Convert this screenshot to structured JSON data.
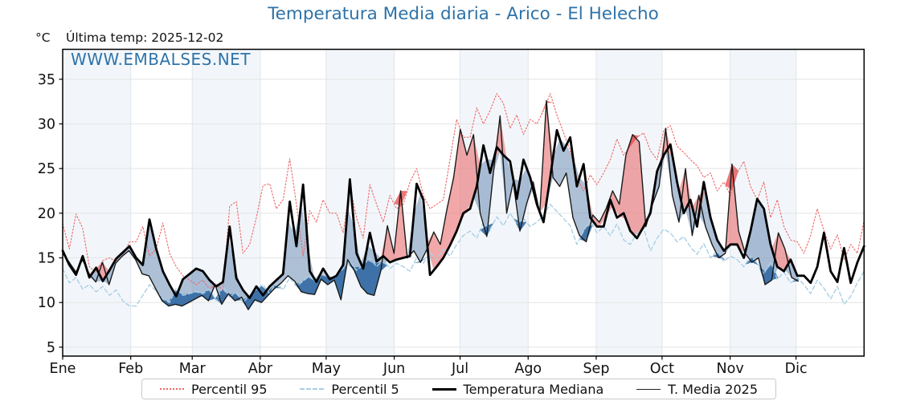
{
  "title": "Temperatura Media diaria - Arico - El Helecho",
  "header": {
    "unit_label": "°C",
    "last_temp_label": "Última temp: 2025-12-02"
  },
  "watermark": "WWW.EMBALSES.NET",
  "legend": {
    "items": [
      {
        "label": "Percentil 95",
        "kind": "dotted",
        "color": "#ef6565"
      },
      {
        "label": "Percentil 5",
        "kind": "dashed",
        "color": "#a9cfe5"
      },
      {
        "label": "Temperatura Mediana",
        "kind": "thick",
        "color": "#000000"
      },
      {
        "label": "T. Media 2025",
        "kind": "thin",
        "color": "#222222"
      }
    ]
  },
  "chart_data": {
    "type": "line",
    "title": "Temperatura Media diaria - Arico - El Helecho",
    "ylabel": "°C",
    "ylim": [
      4.0,
      38.35
    ],
    "y_ticks": [
      5,
      10,
      15,
      20,
      25,
      30,
      35
    ],
    "months": [
      "Ene",
      "Feb",
      "Mar",
      "Abr",
      "May",
      "Jun",
      "Jul",
      "Ago",
      "Sep",
      "Oct",
      "Nov",
      "Dic"
    ],
    "month_start_days": [
      0,
      31,
      59,
      90,
      120,
      151,
      181,
      212,
      243,
      273,
      304,
      334,
      365
    ],
    "grid": true,
    "legend_position": "bottom",
    "colors": {
      "title_blue": "#2e73a9",
      "p95_line": "#ef6565",
      "p5_line": "#a9cfe5",
      "median_line": "#000000",
      "t2025_line": "#1a1a1a",
      "fill_above_median": "rgba(233,110,110,0.60)",
      "fill_above_p95": "rgba(226,75,75,0.75)",
      "fill_below_median": "rgba(105,140,180,0.55)",
      "fill_below_p5": "rgba(42,100,160,0.85)",
      "band_shade": "#f2f6fa",
      "gridline": "#e4e4e4"
    },
    "series": [
      {
        "name": "Percentil 95",
        "days_span": 365,
        "values": [
          18.8,
          16.0,
          19.9,
          18.3,
          14.0,
          13.4,
          14.7,
          15.0,
          14.6,
          15.2,
          16.8,
          16.8,
          18.5,
          15.2,
          16.0,
          18.9,
          15.5,
          14.0,
          13.0,
          12.5,
          12.0,
          12.5,
          11.5,
          12.0,
          11.4,
          20.8,
          21.3,
          15.5,
          16.5,
          19.5,
          23.1,
          23.3,
          20.5,
          21.5,
          26.1,
          21.0,
          15.2,
          20.3,
          19.0,
          21.5,
          20.0,
          20.0,
          17.8,
          23.0,
          19.5,
          17.2,
          23.2,
          21.0,
          19.0,
          22.0,
          20.5,
          21.0,
          23.5,
          25.0,
          22.0,
          20.5,
          21.0,
          21.5,
          26.0,
          30.5,
          28.5,
          28.5,
          31.8,
          30.0,
          31.5,
          33.4,
          32.3,
          29.5,
          31.0,
          28.8,
          30.5,
          30.0,
          31.5,
          33.4,
          31.0,
          29.0,
          27.0,
          24.0,
          22.5,
          24.3,
          23.2,
          24.5,
          26.0,
          28.3,
          26.5,
          27.5,
          28.5,
          29.0,
          27.0,
          26.0,
          29.3,
          29.8,
          27.5,
          26.8,
          26.0,
          25.3,
          24.0,
          24.5,
          22.5,
          23.5,
          22.0,
          24.5,
          25.8,
          23.0,
          21.5,
          23.5,
          19.5,
          21.5,
          18.5,
          17.0,
          16.8,
          15.5,
          17.5,
          20.5,
          18.0,
          16.0,
          17.6,
          14.8,
          16.5,
          15.5,
          19.2
        ]
      },
      {
        "name": "Percentil 5",
        "days_span": 365,
        "values": [
          13.8,
          12.2,
          12.8,
          11.5,
          12.0,
          11.2,
          11.8,
          10.8,
          11.4,
          10.2,
          9.6,
          9.6,
          10.8,
          12.0,
          11.3,
          10.4,
          10.0,
          11.6,
          10.8,
          11.0,
          11.2,
          11.0,
          11.5,
          10.2,
          11.8,
          10.6,
          11.2,
          10.0,
          10.8,
          11.5,
          12.0,
          11.0,
          12.2,
          11.4,
          12.8,
          11.8,
          12.4,
          13.0,
          12.2,
          13.4,
          12.6,
          13.0,
          13.8,
          14.6,
          13.6,
          14.2,
          15.0,
          14.0,
          14.8,
          13.8,
          14.4,
          14.0,
          13.5,
          15.0,
          14.4,
          15.6,
          14.8,
          16.0,
          15.2,
          16.5,
          17.5,
          18.0,
          17.2,
          19.0,
          18.2,
          19.6,
          18.6,
          20.0,
          18.8,
          19.4,
          18.5,
          19.0,
          19.8,
          21.0,
          20.2,
          19.4,
          18.6,
          16.5,
          18.0,
          19.2,
          17.8,
          18.5,
          17.5,
          18.8,
          17.0,
          16.5,
          17.8,
          18.3,
          15.8,
          17.2,
          18.2,
          17.8,
          16.8,
          17.4,
          16.2,
          15.4,
          16.6,
          15.0,
          15.8,
          14.6,
          15.2,
          14.8,
          14.0,
          15.2,
          14.4,
          13.2,
          14.6,
          12.6,
          13.4,
          12.2,
          12.8,
          12.0,
          11.0,
          12.5,
          11.6,
          10.4,
          11.8,
          9.8,
          10.7,
          12.2,
          13.5
        ]
      },
      {
        "name": "Temperatura Mediana",
        "days_span": 365,
        "values": [
          15.8,
          14.2,
          13.1,
          15.2,
          12.8,
          13.9,
          12.4,
          13.6,
          14.9,
          15.6,
          16.3,
          15.0,
          14.2,
          19.3,
          16.0,
          13.5,
          12.0,
          10.7,
          12.6,
          13.2,
          13.8,
          13.5,
          12.5,
          11.8,
          12.3,
          18.5,
          12.7,
          11.4,
          10.5,
          11.8,
          10.8,
          11.8,
          12.5,
          13.2,
          21.3,
          16.3,
          23.2,
          13.5,
          12.3,
          13.8,
          12.6,
          13.0,
          14.2,
          23.8,
          15.5,
          13.8,
          17.8,
          14.6,
          15.2,
          14.5,
          14.8,
          15.0,
          15.2,
          23.3,
          21.5,
          13.1,
          14.0,
          15.0,
          16.4,
          18.0,
          20.0,
          20.5,
          23.0,
          27.6,
          24.5,
          27.4,
          26.5,
          25.8,
          21.6,
          26.0,
          24.0,
          21.0,
          19.0,
          24.0,
          29.3,
          27.0,
          28.5,
          23.0,
          25.5,
          19.5,
          18.5,
          18.5,
          21.5,
          19.5,
          20.0,
          18.0,
          17.2,
          18.5,
          20.0,
          24.7,
          26.5,
          27.7,
          23.5,
          20.0,
          21.5,
          18.5,
          23.5,
          19.5,
          17.0,
          15.8,
          16.5,
          16.5,
          15.0,
          18.0,
          21.6,
          20.5,
          16.5,
          14.0,
          13.5,
          14.8,
          13.0,
          13.0,
          12.2,
          14.0,
          17.8,
          13.5,
          12.3,
          16.1,
          12.2,
          14.5,
          16.3
        ]
      },
      {
        "name": "T. Media 2025",
        "days_span": 335,
        "values": [
          15.5,
          14.5,
          13.4,
          14.8,
          13.2,
          12.3,
          14.5,
          12.0,
          14.4,
          15.2,
          15.8,
          14.8,
          13.2,
          13.0,
          11.6,
          10.2,
          9.6,
          9.8,
          9.6,
          10.0,
          10.4,
          10.8,
          10.2,
          12.0,
          9.8,
          11.0,
          10.2,
          10.6,
          9.2,
          10.3,
          10.0,
          10.8,
          11.6,
          12.2,
          13.0,
          12.4,
          11.2,
          11.0,
          10.9,
          12.6,
          12.0,
          12.5,
          10.3,
          14.8,
          13.6,
          11.8,
          11.0,
          10.8,
          13.5,
          18.6,
          15.5,
          22.5,
          15.0,
          15.8,
          14.5,
          16.0,
          17.9,
          16.5,
          20.5,
          24.0,
          29.4,
          26.5,
          28.8,
          20.0,
          17.4,
          24.5,
          30.9,
          20.0,
          23.5,
          18.0,
          21.0,
          23.5,
          20.0,
          32.6,
          24.0,
          23.0,
          24.5,
          19.5,
          17.5,
          16.8,
          19.8,
          19.0,
          20.5,
          22.5,
          21.0,
          26.5,
          28.8,
          28.0,
          18.5,
          21.0,
          23.0,
          29.5,
          22.0,
          19.0,
          25.0,
          17.5,
          22.0,
          18.5,
          16.5,
          15.0,
          15.5,
          25.5,
          18.0,
          15.5,
          14.5,
          15.0,
          12.0,
          12.5,
          17.8,
          16.0,
          12.8,
          12.4
        ]
      }
    ]
  }
}
